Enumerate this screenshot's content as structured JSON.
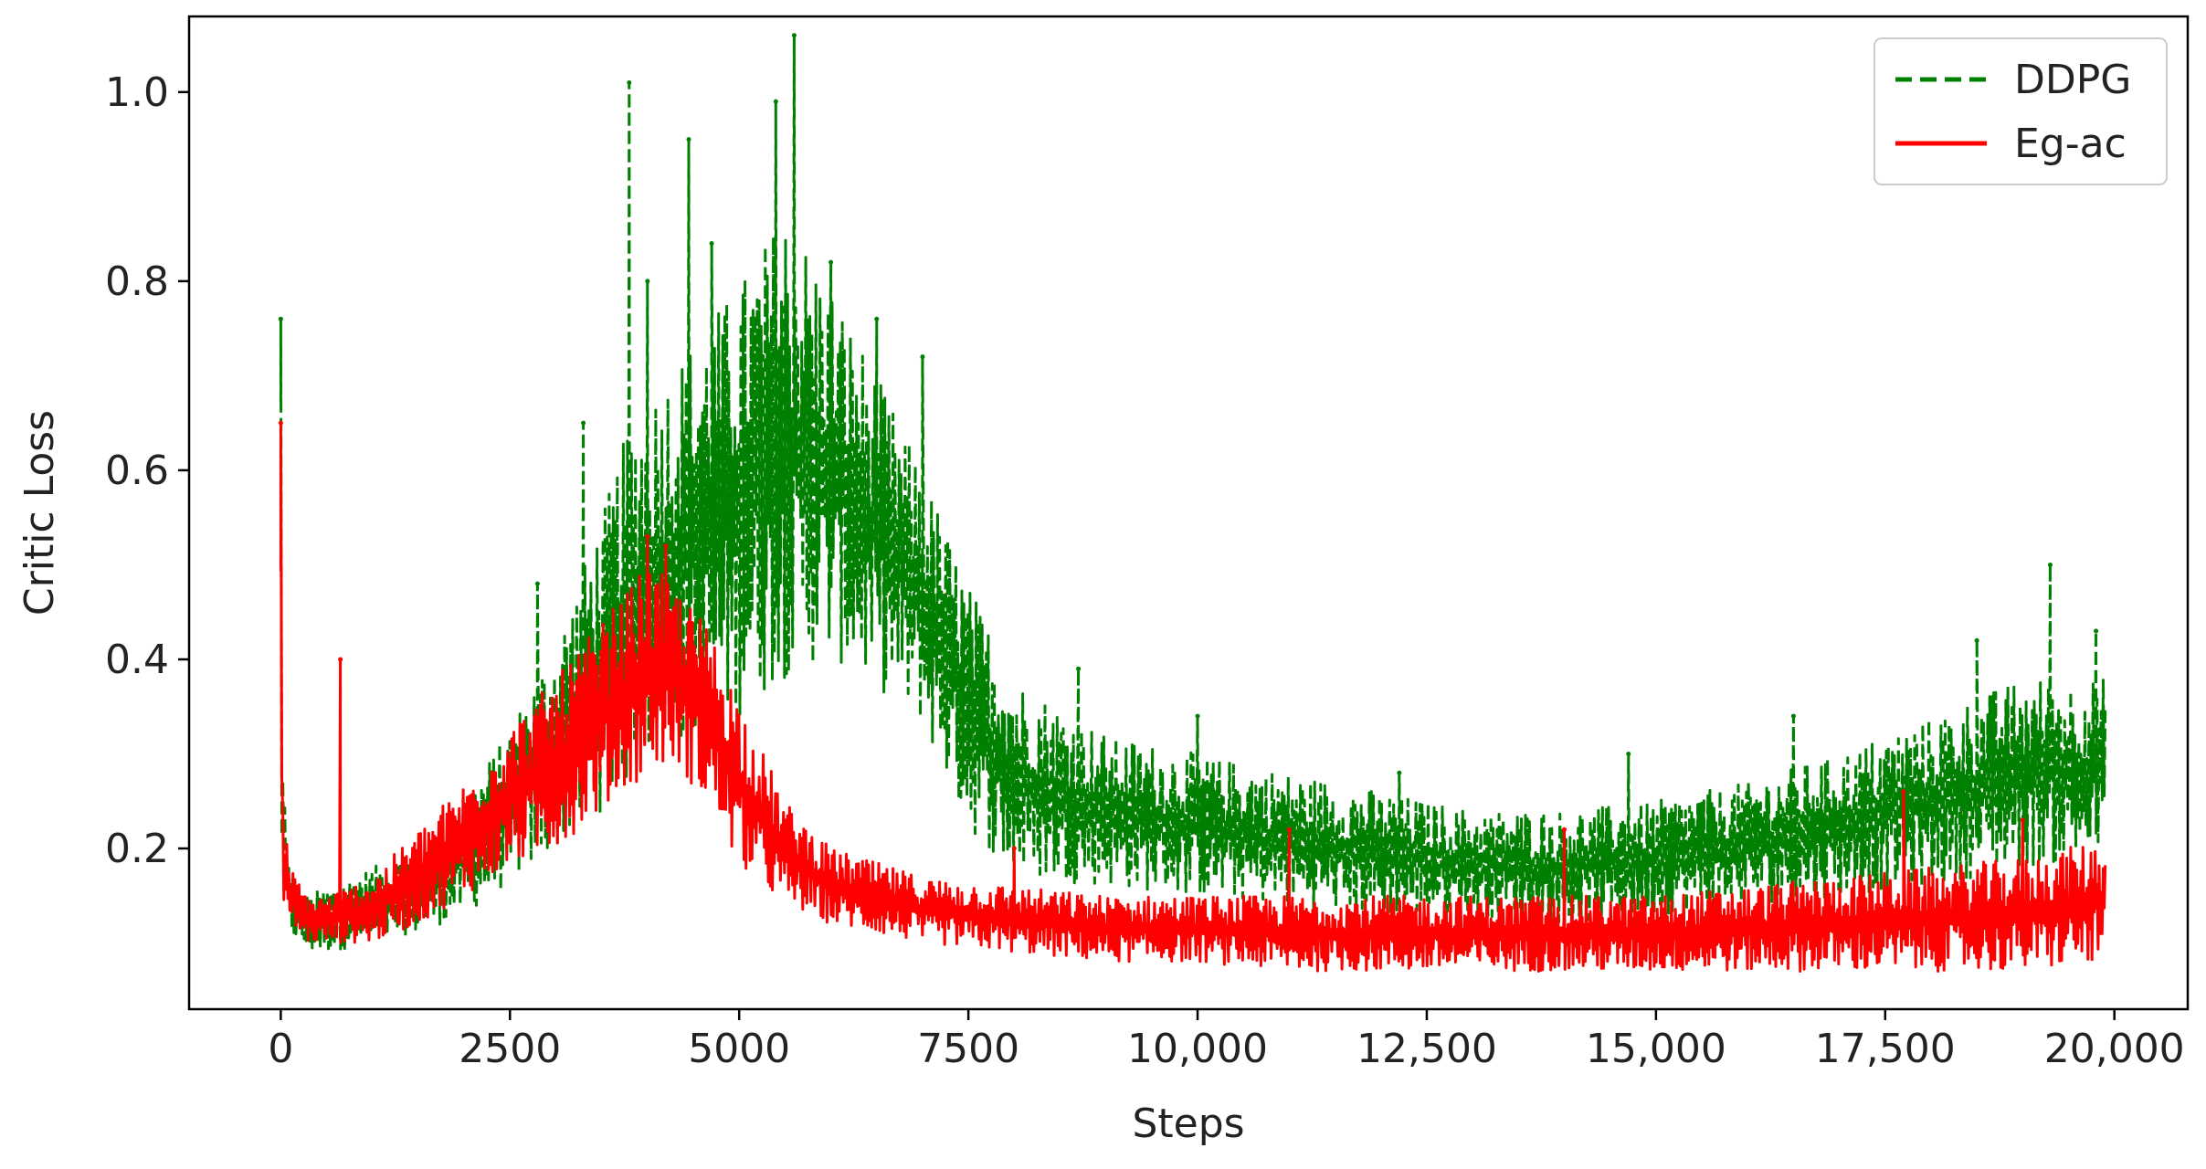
{
  "chart_data": {
    "type": "line",
    "title": "",
    "xlabel": "Steps",
    "ylabel": "Critic Loss",
    "xlim": [
      -1000,
      20800
    ],
    "ylim": [
      0.03,
      1.08
    ],
    "x_ticks": [
      {
        "value": 0,
        "label": "0"
      },
      {
        "value": 2500,
        "label": "2500"
      },
      {
        "value": 5000,
        "label": "5000"
      },
      {
        "value": 7500,
        "label": "7500"
      },
      {
        "value": 10000,
        "label": "10,000"
      },
      {
        "value": 12500,
        "label": "12,500"
      },
      {
        "value": 15000,
        "label": "15,000"
      },
      {
        "value": 17500,
        "label": "17,500"
      },
      {
        "value": 20000,
        "label": "20,000"
      }
    ],
    "y_ticks": [
      {
        "value": 0.2,
        "label": "0.2"
      },
      {
        "value": 0.4,
        "label": "0.4"
      },
      {
        "value": 0.6,
        "label": "0.6"
      },
      {
        "value": 0.8,
        "label": "0.8"
      },
      {
        "value": 1.0,
        "label": "1.0"
      }
    ],
    "grid": false,
    "legend_position": "top-right",
    "x_range": [
      0,
      19900
    ],
    "series": [
      {
        "name": "DDPG",
        "color": "#008000",
        "style": "dashed",
        "envelope": {
          "x": [
            0,
            20,
            100,
            300,
            500,
            1000,
            1500,
            2000,
            2500,
            3000,
            3500,
            3800,
            4000,
            4500,
            5000,
            5500,
            6000,
            6500,
            7000,
            7500,
            8000,
            9000,
            10000,
            11000,
            12000,
            13000,
            14000,
            15000,
            16000,
            17000,
            18000,
            19000,
            19900
          ],
          "low": [
            0.19,
            0.15,
            0.11,
            0.09,
            0.09,
            0.1,
            0.11,
            0.13,
            0.16,
            0.2,
            0.24,
            0.27,
            0.3,
            0.31,
            0.34,
            0.38,
            0.4,
            0.37,
            0.33,
            0.22,
            0.17,
            0.16,
            0.15,
            0.14,
            0.13,
            0.13,
            0.12,
            0.13,
            0.14,
            0.15,
            0.16,
            0.18,
            0.19
          ],
          "high": [
            0.76,
            0.3,
            0.17,
            0.15,
            0.16,
            0.18,
            0.2,
            0.25,
            0.33,
            0.42,
            0.55,
            0.65,
            0.68,
            0.74,
            0.8,
            0.88,
            0.8,
            0.7,
            0.6,
            0.48,
            0.38,
            0.32,
            0.3,
            0.28,
            0.26,
            0.24,
            0.24,
            0.25,
            0.27,
            0.3,
            0.34,
            0.38,
            0.38
          ]
        },
        "spikes": [
          {
            "x": 0,
            "y": 0.76
          },
          {
            "x": 2800,
            "y": 0.48
          },
          {
            "x": 3300,
            "y": 0.65
          },
          {
            "x": 3800,
            "y": 1.01
          },
          {
            "x": 4000,
            "y": 0.8
          },
          {
            "x": 4450,
            "y": 0.95
          },
          {
            "x": 4700,
            "y": 0.84
          },
          {
            "x": 5400,
            "y": 0.99
          },
          {
            "x": 5600,
            "y": 1.06
          },
          {
            "x": 6000,
            "y": 0.82
          },
          {
            "x": 6500,
            "y": 0.76
          },
          {
            "x": 7000,
            "y": 0.72
          },
          {
            "x": 8700,
            "y": 0.39
          },
          {
            "x": 10000,
            "y": 0.34
          },
          {
            "x": 12200,
            "y": 0.28
          },
          {
            "x": 14700,
            "y": 0.3
          },
          {
            "x": 16500,
            "y": 0.34
          },
          {
            "x": 18500,
            "y": 0.42
          },
          {
            "x": 19300,
            "y": 0.5
          },
          {
            "x": 19800,
            "y": 0.43
          }
        ]
      },
      {
        "name": "Eg-ac",
        "color": "#ff0000",
        "style": "solid",
        "envelope": {
          "x": [
            0,
            20,
            100,
            300,
            500,
            1000,
            1500,
            2000,
            2500,
            3000,
            3500,
            4000,
            4300,
            4700,
            5000,
            5500,
            6000,
            7000,
            8000,
            9000,
            10000,
            11000,
            12000,
            13000,
            14000,
            15000,
            16000,
            17000,
            18000,
            19000,
            19900
          ],
          "low": [
            0.18,
            0.15,
            0.12,
            0.1,
            0.1,
            0.1,
            0.12,
            0.15,
            0.18,
            0.2,
            0.24,
            0.28,
            0.29,
            0.24,
            0.18,
            0.14,
            0.12,
            0.1,
            0.09,
            0.08,
            0.08,
            0.07,
            0.07,
            0.07,
            0.07,
            0.07,
            0.07,
            0.07,
            0.07,
            0.07,
            0.08
          ],
          "high": [
            0.65,
            0.25,
            0.18,
            0.15,
            0.15,
            0.17,
            0.22,
            0.27,
            0.33,
            0.38,
            0.44,
            0.5,
            0.48,
            0.43,
            0.36,
            0.25,
            0.2,
            0.17,
            0.16,
            0.15,
            0.15,
            0.15,
            0.15,
            0.15,
            0.15,
            0.15,
            0.16,
            0.17,
            0.18,
            0.19,
            0.21
          ]
        },
        "spikes": [
          {
            "x": 0,
            "y": 0.65
          },
          {
            "x": 650,
            "y": 0.4
          },
          {
            "x": 4000,
            "y": 0.53
          },
          {
            "x": 4200,
            "y": 0.52
          },
          {
            "x": 8000,
            "y": 0.2
          },
          {
            "x": 11000,
            "y": 0.22
          },
          {
            "x": 14000,
            "y": 0.22
          },
          {
            "x": 17700,
            "y": 0.26
          },
          {
            "x": 19000,
            "y": 0.23
          }
        ]
      }
    ]
  }
}
